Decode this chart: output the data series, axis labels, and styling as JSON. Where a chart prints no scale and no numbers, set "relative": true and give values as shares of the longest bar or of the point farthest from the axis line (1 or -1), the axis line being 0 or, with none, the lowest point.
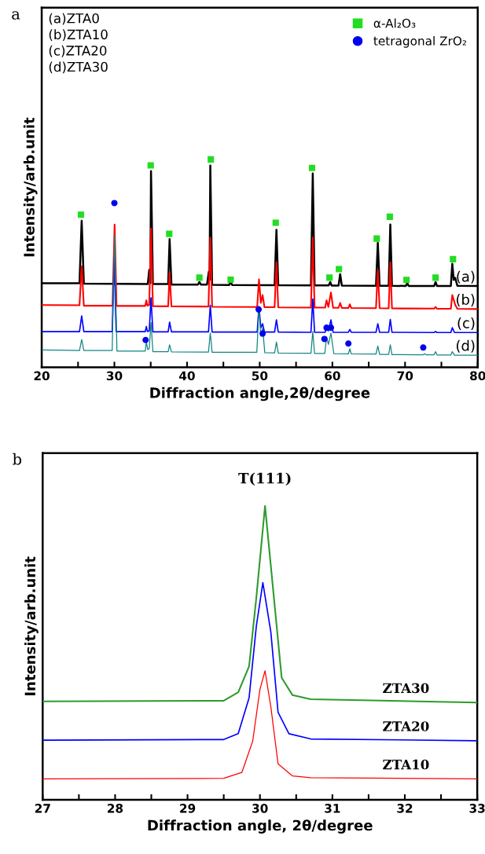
{
  "chart_data": [
    {
      "type": "line",
      "relative": true,
      "xlabel": "Diffraction angle,2θ/degree",
      "ylabel": "Intensity/arb.unit",
      "xlim": [
        20,
        80
      ],
      "xticks": [
        20,
        {
          "value": 25,
          "label": null
        },
        30,
        {
          "value": 35,
          "label": null
        },
        40,
        {
          "value": 45,
          "label": null
        },
        50,
        {
          "value": 55,
          "label": null
        },
        60,
        {
          "value": 65,
          "label": null
        },
        70,
        {
          "value": 75,
          "label": null
        },
        80
      ],
      "tick_labels": "x",
      "grid": false,
      "legend": "top right",
      "annotations": [
        "a",
        "(a)ZTA0",
        "(b)ZTA10",
        "(c)ZTA20",
        "(d)ZTA30"
      ],
      "series": [
        {
          "name": "(a)",
          "color": "#000000",
          "x": [
            20,
            25.2,
            25.5,
            25.8,
            34.6,
            34.8,
            34.95,
            35.04,
            35.3,
            37.4,
            37.6,
            37.85,
            41.5,
            41.7,
            41.9,
            42.75,
            43.0,
            43.1,
            43.2,
            43.45,
            45.8,
            46.0,
            46.2,
            52.05,
            52.3,
            52.55,
            57.05,
            57.3,
            57.55,
            59.5,
            59.7,
            59.9,
            60.85,
            61.07,
            61.3,
            66.0,
            66.25,
            66.5,
            67.75,
            67.97,
            68.2,
            70.1,
            70.3,
            70.5,
            74.0,
            74.2,
            74.4,
            76.3,
            76.5,
            76.7,
            76.9,
            77.2,
            80
          ],
          "values": [
            0.404,
            0.404,
            0.705,
            0.402,
            0.4,
            0.468,
            0.405,
            0.944,
            0.4,
            0.4,
            0.617,
            0.398,
            0.398,
            0.41,
            0.398,
            0.398,
            0.46,
            0.42,
            0.97,
            0.397,
            0.396,
            0.41,
            0.396,
            0.395,
            0.661,
            0.395,
            0.394,
            0.932,
            0.394,
            0.394,
            0.41,
            0.393,
            0.393,
            0.448,
            0.393,
            0.392,
            0.599,
            0.392,
            0.392,
            0.687,
            0.392,
            0.391,
            0.405,
            0.391,
            0.391,
            0.41,
            0.391,
            0.391,
            0.498,
            0.42,
            0.43,
            0.392,
            0.391
          ]
        },
        {
          "name": "(b)",
          "color": "#ff0000",
          "x": [
            20,
            25.2,
            25.5,
            25.8,
            29.75,
            30.03,
            30.3,
            34.25,
            34.4,
            34.55,
            34.8,
            35.04,
            35.3,
            37.4,
            37.6,
            37.85,
            42.95,
            43.2,
            43.45,
            49.65,
            49.9,
            50.15,
            50.4,
            50.65,
            52.05,
            52.3,
            52.55,
            57.05,
            57.3,
            57.55,
            59.0,
            59.2,
            59.45,
            59.8,
            60.1,
            60.85,
            61.07,
            61.3,
            62.2,
            62.4,
            62.6,
            66.0,
            66.25,
            66.5,
            67.75,
            67.97,
            68.2,
            74.0,
            74.2,
            74.4,
            76.3,
            76.5,
            76.9,
            77.2,
            80
          ],
          "values": [
            0.299,
            0.298,
            0.486,
            0.296,
            0.296,
            0.687,
            0.295,
            0.295,
            0.322,
            0.296,
            0.3,
            0.668,
            0.294,
            0.293,
            0.454,
            0.293,
            0.292,
            0.624,
            0.291,
            0.29,
            0.423,
            0.31,
            0.347,
            0.289,
            0.289,
            0.505,
            0.288,
            0.287,
            0.624,
            0.287,
            0.287,
            0.322,
            0.29,
            0.36,
            0.286,
            0.286,
            0.309,
            0.285,
            0.285,
            0.303,
            0.285,
            0.284,
            0.467,
            0.284,
            0.283,
            0.505,
            0.283,
            0.282,
            0.29,
            0.281,
            0.281,
            0.347,
            0.3,
            0.281,
            0.28
          ]
        },
        {
          "name": "(c)",
          "color": "#0000ff",
          "x": [
            20,
            25.2,
            25.5,
            25.8,
            29.7,
            29.97,
            30.25,
            34.25,
            34.4,
            34.55,
            34.8,
            35.04,
            35.3,
            37.4,
            37.6,
            37.85,
            42.95,
            43.2,
            43.45,
            49.65,
            49.9,
            50.15,
            50.4,
            50.65,
            52.05,
            52.3,
            52.55,
            57.05,
            57.3,
            57.55,
            59.0,
            59.2,
            59.45,
            59.8,
            60.1,
            62.2,
            62.4,
            62.6,
            66.0,
            66.25,
            66.5,
            67.75,
            67.97,
            68.2,
            74.0,
            74.2,
            74.4,
            76.3,
            76.5,
            76.8,
            80
          ],
          "values": [
            0.171,
            0.171,
            0.247,
            0.171,
            0.171,
            0.529,
            0.171,
            0.171,
            0.196,
            0.172,
            0.175,
            0.334,
            0.17,
            0.17,
            0.217,
            0.17,
            0.17,
            0.298,
            0.169,
            0.169,
            0.291,
            0.19,
            0.209,
            0.169,
            0.169,
            0.228,
            0.169,
            0.168,
            0.328,
            0.168,
            0.168,
            0.196,
            0.175,
            0.228,
            0.168,
            0.168,
            0.182,
            0.168,
            0.168,
            0.209,
            0.168,
            0.168,
            0.23,
            0.168,
            0.167,
            0.172,
            0.167,
            0.167,
            0.19,
            0.167,
            0.167
          ]
        },
        {
          "name": "(d)",
          "color": "#138585",
          "x": [
            20,
            25.2,
            25.5,
            25.8,
            29.7,
            30.03,
            30.35,
            34.25,
            34.4,
            34.6,
            34.8,
            35.04,
            35.3,
            37.4,
            37.6,
            37.85,
            42.95,
            43.2,
            43.45,
            49.6,
            49.9,
            50.15,
            50.4,
            50.7,
            52.05,
            52.3,
            52.55,
            57.05,
            57.3,
            57.55,
            58.95,
            59.2,
            59.45,
            59.8,
            60.2,
            62.2,
            62.4,
            62.6,
            66.0,
            66.25,
            66.5,
            67.75,
            67.97,
            68.2,
            72.5,
            72.7,
            72.9,
            74.0,
            74.2,
            74.4,
            76.3,
            76.5,
            76.8,
            80
          ],
          "values": [
            0.083,
            0.08,
            0.133,
            0.08,
            0.08,
            0.637,
            0.078,
            0.078,
            0.121,
            0.085,
            0.09,
            0.215,
            0.075,
            0.075,
            0.108,
            0.074,
            0.073,
            0.165,
            0.072,
            0.072,
            0.285,
            0.15,
            0.19,
            0.07,
            0.069,
            0.121,
            0.068,
            0.067,
            0.171,
            0.066,
            0.066,
            0.146,
            0.11,
            0.165,
            0.065,
            0.064,
            0.089,
            0.064,
            0.063,
            0.102,
            0.062,
            0.062,
            0.108,
            0.061,
            0.06,
            0.065,
            0.06,
            0.06,
            0.075,
            0.059,
            0.059,
            0.075,
            0.058,
            0.058
          ]
        },
        {
          "name": "α-Al₂O₃",
          "type": "scatter",
          "marker": "square",
          "color": "#22dd22",
          "x": [
            25.4,
            35.0,
            37.55,
            41.7,
            43.27,
            46.0,
            52.2,
            57.2,
            59.6,
            60.9,
            66.1,
            67.9,
            70.2,
            74.2,
            76.6
          ],
          "values": [
            0.734,
            0.971,
            0.642,
            0.431,
            1.0,
            0.421,
            0.695,
            0.959,
            0.431,
            0.472,
            0.619,
            0.724,
            0.42,
            0.431,
            0.52
          ]
        },
        {
          "name": "tetragonal ZrO₂",
          "type": "scatter",
          "marker": "circle",
          "color": "#0000ee",
          "x": [
            30.0,
            34.3,
            49.85,
            50.4,
            58.9,
            59.2,
            59.8,
            62.2,
            72.5
          ],
          "values": [
            0.79,
            0.131,
            0.278,
            0.162,
            0.136,
            0.19,
            0.19,
            0.114,
            0.095
          ]
        }
      ]
    },
    {
      "type": "line",
      "relative": true,
      "xlabel": "Diffraction angle, 2θ/degree",
      "ylabel": "Intensity/arb.unit",
      "xlim": [
        27,
        33
      ],
      "xticks": [
        27,
        {
          "value": 27.5,
          "label": null
        },
        28,
        {
          "value": 28.5,
          "label": null
        },
        29,
        {
          "value": 29.5,
          "label": null
        },
        30,
        {
          "value": 30.5,
          "label": null
        },
        31,
        {
          "value": 31.5,
          "label": null
        },
        32,
        {
          "value": 32.5,
          "label": null
        },
        33
      ],
      "tick_labels": "x",
      "grid": false,
      "annotations": [
        "b",
        {
          "text": "T(111)",
          "x": 30.07,
          "y": 1.0
        }
      ],
      "series": [
        {
          "name": "ZTA30",
          "color": "#2e9b2e",
          "x": [
            27,
            29.5,
            29.7,
            29.85,
            29.95,
            30.07,
            30.2,
            30.3,
            30.45,
            30.7,
            33
          ],
          "values": [
            0.335,
            0.337,
            0.366,
            0.454,
            0.688,
            1.0,
            0.669,
            0.415,
            0.356,
            0.342,
            0.331
          ]
        },
        {
          "name": "ZTA20",
          "color": "#0000ff",
          "x": [
            27,
            29.5,
            29.7,
            29.85,
            29.95,
            30.04,
            30.15,
            30.25,
            30.4,
            30.7,
            33
          ],
          "values": [
            0.203,
            0.205,
            0.225,
            0.347,
            0.591,
            0.739,
            0.571,
            0.298,
            0.225,
            0.207,
            0.201
          ]
        },
        {
          "name": "ZTA10",
          "color": "#ff0000",
          "x": [
            27,
            29.5,
            29.75,
            29.9,
            30.0,
            30.07,
            30.15,
            30.25,
            30.45,
            30.7,
            33
          ],
          "values": [
            0.071,
            0.073,
            0.093,
            0.2,
            0.376,
            0.439,
            0.317,
            0.122,
            0.081,
            0.075,
            0.071
          ]
        }
      ]
    }
  ]
}
